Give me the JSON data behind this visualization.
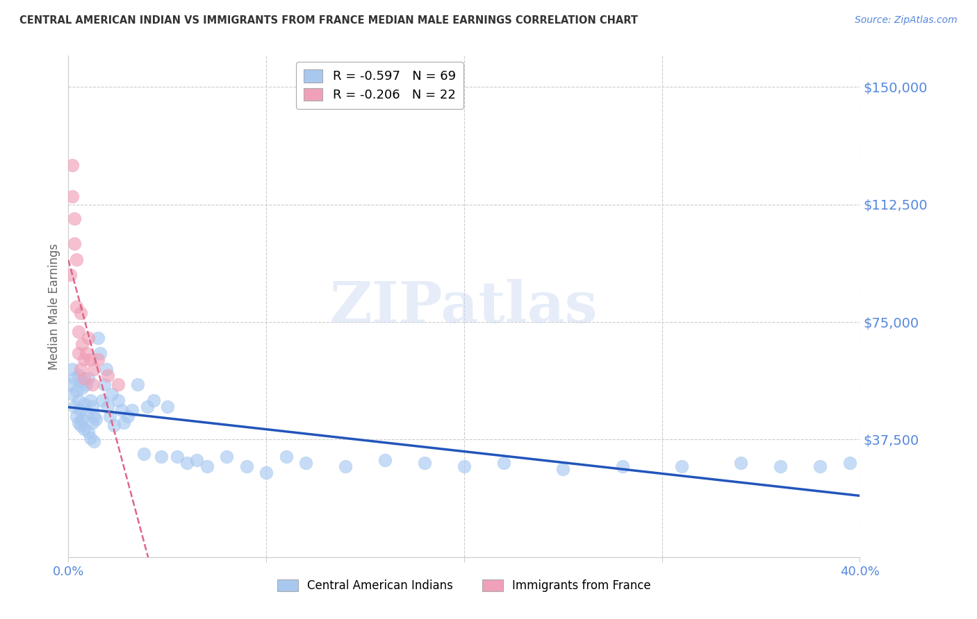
{
  "title": "CENTRAL AMERICAN INDIAN VS IMMIGRANTS FROM FRANCE MEDIAN MALE EARNINGS CORRELATION CHART",
  "source": "Source: ZipAtlas.com",
  "ylabel": "Median Male Earnings",
  "y_ticks": [
    0,
    37500,
    75000,
    112500,
    150000
  ],
  "y_tick_labels": [
    "",
    "$37,500",
    "$75,000",
    "$112,500",
    "$150,000"
  ],
  "ylim": [
    0,
    160000
  ],
  "xlim": [
    0.0,
    0.4
  ],
  "blue_R": "-0.597",
  "blue_N": "69",
  "pink_R": "-0.206",
  "pink_N": "22",
  "legend_label_blue": "Central American Indians",
  "legend_label_pink": "Immigrants from France",
  "blue_color": "#A8C8F0",
  "pink_color": "#F0A0B8",
  "blue_line_color": "#2255BB",
  "pink_line_color": "#DD6688",
  "watermark_text": "ZIPatlas",
  "title_color": "#333333",
  "axis_color": "#5588DD",
  "grid_color": "#CCCCCC",
  "blue_scatter_x": [
    0.001,
    0.002,
    0.002,
    0.003,
    0.003,
    0.004,
    0.004,
    0.005,
    0.005,
    0.005,
    0.006,
    0.006,
    0.006,
    0.007,
    0.007,
    0.008,
    0.008,
    0.009,
    0.009,
    0.01,
    0.01,
    0.011,
    0.011,
    0.012,
    0.012,
    0.013,
    0.013,
    0.014,
    0.015,
    0.016,
    0.017,
    0.018,
    0.019,
    0.02,
    0.021,
    0.022,
    0.023,
    0.025,
    0.027,
    0.028,
    0.03,
    0.032,
    0.035,
    0.038,
    0.04,
    0.043,
    0.047,
    0.05,
    0.055,
    0.06,
    0.065,
    0.07,
    0.08,
    0.09,
    0.1,
    0.11,
    0.12,
    0.14,
    0.16,
    0.18,
    0.2,
    0.22,
    0.25,
    0.28,
    0.31,
    0.34,
    0.36,
    0.38,
    0.395
  ],
  "blue_scatter_y": [
    55000,
    52000,
    60000,
    48000,
    57000,
    53000,
    45000,
    50000,
    43000,
    58000,
    56000,
    47000,
    42000,
    54000,
    44000,
    49000,
    41000,
    46000,
    55000,
    57000,
    40000,
    50000,
    38000,
    48000,
    43000,
    45000,
    37000,
    44000,
    70000,
    65000,
    50000,
    55000,
    60000,
    48000,
    45000,
    52000,
    42000,
    50000,
    47000,
    43000,
    45000,
    47000,
    55000,
    33000,
    48000,
    50000,
    32000,
    48000,
    32000,
    30000,
    31000,
    29000,
    32000,
    29000,
    27000,
    32000,
    30000,
    29000,
    31000,
    30000,
    29000,
    30000,
    28000,
    29000,
    29000,
    30000,
    29000,
    29000,
    30000
  ],
  "pink_scatter_x": [
    0.001,
    0.002,
    0.002,
    0.003,
    0.003,
    0.004,
    0.004,
    0.005,
    0.005,
    0.006,
    0.006,
    0.007,
    0.008,
    0.008,
    0.009,
    0.01,
    0.011,
    0.012,
    0.013,
    0.015,
    0.02,
    0.025
  ],
  "pink_scatter_y": [
    90000,
    125000,
    115000,
    100000,
    108000,
    80000,
    95000,
    72000,
    65000,
    78000,
    60000,
    68000,
    63000,
    57000,
    65000,
    70000,
    63000,
    55000,
    60000,
    63000,
    58000,
    55000
  ]
}
